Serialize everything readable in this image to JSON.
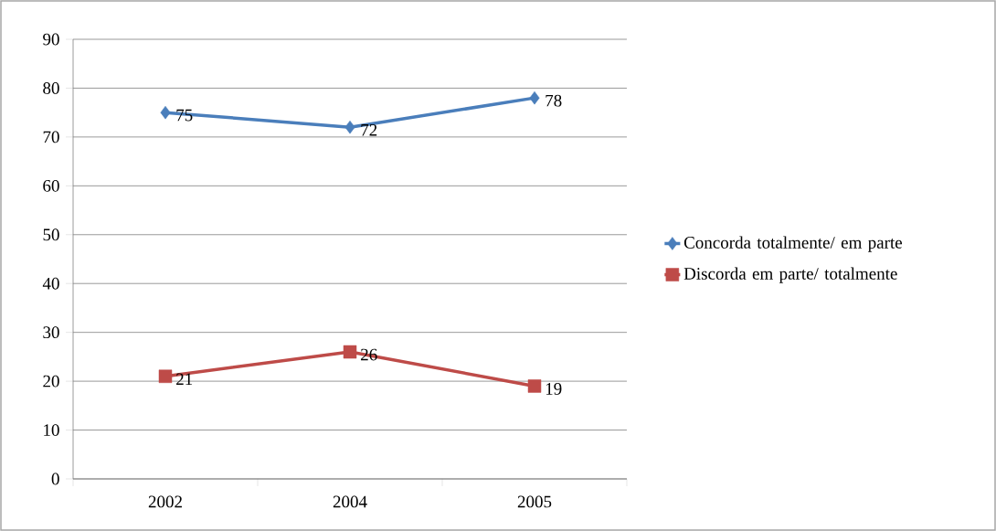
{
  "chart_data": {
    "type": "line",
    "categories": [
      "2002",
      "2004",
      "2005"
    ],
    "series": [
      {
        "name": "Concorda totalmente/ em parte",
        "color": "#4a7ebb",
        "marker": "diamond",
        "values": [
          75,
          72,
          78
        ]
      },
      {
        "name": "Discorda em parte/ totalmente",
        "color": "#be4b48",
        "marker": "square",
        "values": [
          21,
          26,
          19
        ]
      }
    ],
    "ylim": [
      0,
      90
    ],
    "yticks": [
      0,
      10,
      20,
      30,
      40,
      50,
      60,
      70,
      80,
      90
    ],
    "grid": "y",
    "legend": "right",
    "data_labels": true
  }
}
